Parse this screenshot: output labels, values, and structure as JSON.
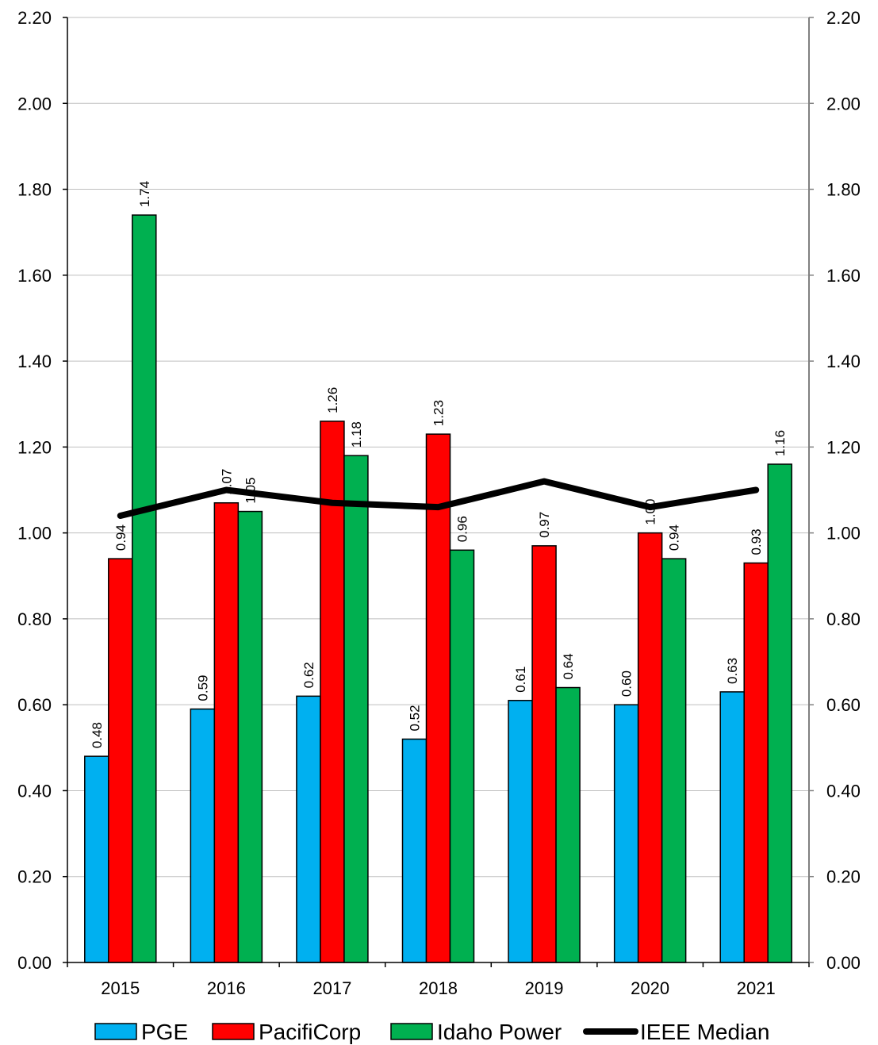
{
  "chart_data": {
    "type": "bar",
    "categories": [
      "2015",
      "2016",
      "2017",
      "2018",
      "2019",
      "2020",
      "2021"
    ],
    "series": [
      {
        "name": "PGE",
        "type": "bar",
        "color": "#00b0f0",
        "values": [
          0.48,
          0.59,
          0.62,
          0.52,
          0.61,
          0.6,
          0.63
        ],
        "labels": [
          "0.48",
          "0.59",
          "0.62",
          "0.52",
          "0.61",
          "0.60",
          "0.63"
        ]
      },
      {
        "name": "PacifiCorp",
        "type": "bar",
        "color": "#ff0000",
        "values": [
          0.94,
          1.07,
          1.26,
          1.23,
          0.97,
          1.0,
          0.93
        ],
        "labels": [
          "0.94",
          "1.07",
          "1.26",
          "1.23",
          "0.97",
          "1.00",
          "0.93"
        ]
      },
      {
        "name": "Idaho Power",
        "type": "bar",
        "color": "#00b050",
        "values": [
          1.74,
          1.05,
          1.18,
          0.96,
          0.64,
          0.94,
          1.16
        ],
        "labels": [
          "1.74",
          "1.05",
          "1.18",
          "0.96",
          "0.64",
          "0.94",
          "1.16"
        ]
      },
      {
        "name": "IEEE Median",
        "type": "line",
        "color": "#000000",
        "values": [
          1.04,
          1.1,
          1.07,
          1.06,
          1.12,
          1.06,
          1.1
        ]
      }
    ],
    "ylim": [
      0,
      2.2
    ],
    "yticks": [
      "0.00",
      "0.20",
      "0.40",
      "0.60",
      "0.80",
      "1.00",
      "1.20",
      "1.40",
      "1.60",
      "1.80",
      "2.00",
      "2.20"
    ],
    "secondary_axis": true,
    "grid": true,
    "legend": "bottom",
    "title": "",
    "xlabel": "",
    "ylabel": ""
  }
}
